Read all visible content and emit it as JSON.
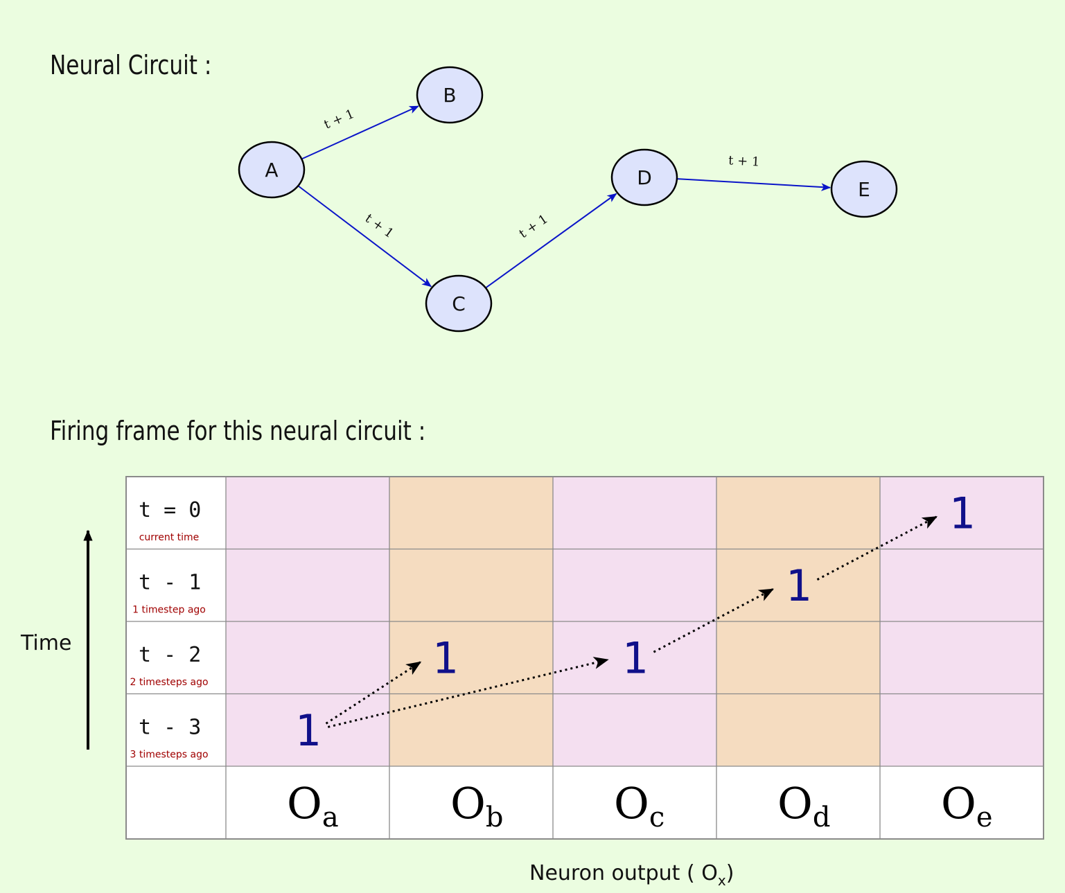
{
  "headings": {
    "circuit": "Neural Circuit :",
    "frame": "Firing frame for this neural circuit :"
  },
  "nodes": [
    {
      "id": "A",
      "label": "A"
    },
    {
      "id": "B",
      "label": "B"
    },
    {
      "id": "C",
      "label": "C"
    },
    {
      "id": "D",
      "label": "D"
    },
    {
      "id": "E",
      "label": "E"
    }
  ],
  "edges": [
    {
      "from": "A",
      "to": "B",
      "label": "t + 1"
    },
    {
      "from": "A",
      "to": "C",
      "label": "t + 1"
    },
    {
      "from": "C",
      "to": "D",
      "label": "t + 1"
    },
    {
      "from": "D",
      "to": "E",
      "label": "t + 1"
    }
  ],
  "frame": {
    "rows": [
      {
        "label": "t = 0",
        "sub": "current time"
      },
      {
        "label": "t - 1",
        "sub": "1 timestep ago"
      },
      {
        "label": "t - 2",
        "sub": "2 timesteps ago"
      },
      {
        "label": "t - 3",
        "sub": "3 timesteps ago"
      }
    ],
    "columns": [
      {
        "main": "O",
        "sub": "a"
      },
      {
        "main": "O",
        "sub": "b"
      },
      {
        "main": "O",
        "sub": "c"
      },
      {
        "main": "O",
        "sub": "d"
      },
      {
        "main": "O",
        "sub": "e"
      }
    ],
    "fires": [
      {
        "col": 0,
        "row": 3,
        "value": "1"
      },
      {
        "col": 1,
        "row": 2,
        "value": "1"
      },
      {
        "col": 2,
        "row": 2,
        "value": "1"
      },
      {
        "col": 3,
        "row": 1,
        "value": "1"
      },
      {
        "col": 4,
        "row": 0,
        "value": "1"
      }
    ],
    "y_axis_label": "Time",
    "x_axis_label": "Neuron output ( O",
    "x_axis_sub": "x",
    "x_axis_close": ")",
    "colors": {
      "pink": "#f4dff0",
      "tan": "#f5dcc0",
      "edge": "#0a14c8",
      "fire": "#10108a"
    }
  }
}
